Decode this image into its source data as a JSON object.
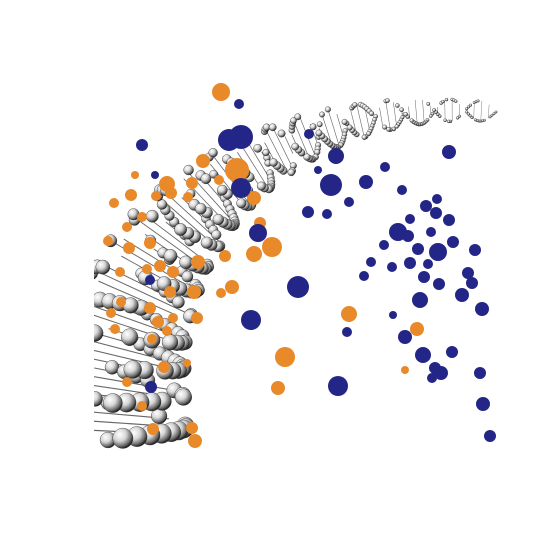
{
  "scene": {
    "background": "#ffffff",
    "colors": {
      "orange": "#e8892a",
      "navy": "#232687",
      "helix_light": "#f2f2f2",
      "helix_mid": "#9a9a9a",
      "helix_dark": "#2a2a2a"
    },
    "elements": {
      "helix": "dna-double-helix",
      "orange_dots": "scattered-orange-circles",
      "navy_dots": "scattered-navy-circles"
    }
  }
}
